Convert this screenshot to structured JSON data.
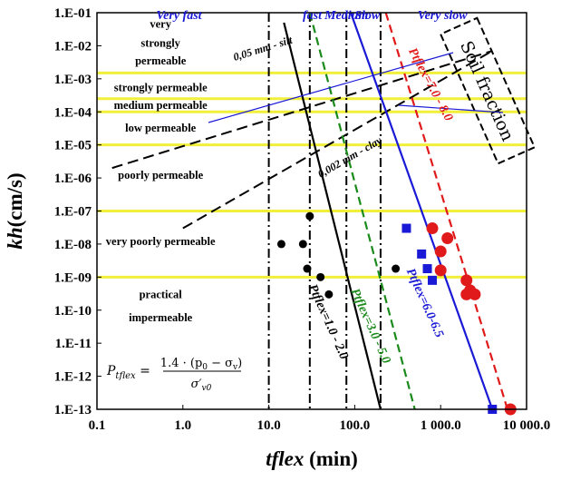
{
  "chart_data": {
    "type": "scatter",
    "xlabel": {
      "var": "tflex",
      "unit": "(min)"
    },
    "ylabel": {
      "var": "kh",
      "unit": "(cm/s)"
    },
    "xscale": "log",
    "yscale": "log",
    "xlim": [
      0.1,
      10000
    ],
    "ylim": [
      1e-13,
      0.1
    ],
    "grid": false,
    "x_ticks": [
      {
        "value": 0.1,
        "label": "0.1"
      },
      {
        "value": 1,
        "label": "1.0"
      },
      {
        "value": 10,
        "label": "10.0"
      },
      {
        "value": 100,
        "label": "100.0"
      },
      {
        "value": 1000,
        "label": "1 000.0"
      },
      {
        "value": 10000,
        "label": "10 000.0"
      }
    ],
    "y_ticks": [
      {
        "value": 0.1,
        "label": "1.E-01"
      },
      {
        "value": 0.01,
        "label": "1.E-02"
      },
      {
        "value": 0.001,
        "label": "1.E-03"
      },
      {
        "value": 0.0001,
        "label": "1.E-04"
      },
      {
        "value": 1e-05,
        "label": "1.E-05"
      },
      {
        "value": 1e-06,
        "label": "1.E-06"
      },
      {
        "value": 1e-07,
        "label": "1.E-07"
      },
      {
        "value": 1e-08,
        "label": "1.E-08"
      },
      {
        "value": 1e-09,
        "label": "1.E-09"
      },
      {
        "value": 1e-10,
        "label": "1.E-10"
      },
      {
        "value": 1e-11,
        "label": "1.E-11"
      },
      {
        "value": 1e-12,
        "label": "1.E-12"
      },
      {
        "value": 1e-13,
        "label": "1.E-13"
      }
    ],
    "permeability_boundaries": [
      0.0015,
      0.00025,
      0.0001,
      1e-05,
      1e-07,
      1e-09
    ],
    "permeability_zones": [
      {
        "lines": [
          "very",
          "strongly",
          "permeable"
        ],
        "x": 0.55,
        "y": [
          0.045,
          0.012,
          0.0035
        ]
      },
      {
        "lines": [
          "strongly permeable"
        ],
        "x": 0.55,
        "y": [
          0.00055
        ]
      },
      {
        "lines": [
          "medium permeable"
        ],
        "x": 0.55,
        "y": [
          0.00016
        ]
      },
      {
        "lines": [
          "low permeable"
        ],
        "x": 0.55,
        "y": [
          3.3e-05
        ]
      },
      {
        "lines": [
          "poorly permeable"
        ],
        "x": 0.55,
        "y": [
          1.2e-06
        ]
      },
      {
        "lines": [
          "very poorly permeable"
        ],
        "x": 0.55,
        "y": [
          1.2e-08
        ]
      },
      {
        "lines": [
          "practical",
          "impermeable"
        ],
        "x": 0.55,
        "y": [
          3e-10,
          6e-11
        ]
      }
    ],
    "time_boundaries": [
      10,
      30,
      80,
      200
    ],
    "speed_labels": [
      {
        "text": "Very fast",
        "x": 0.9
      },
      {
        "text": "fast",
        "x": 32
      },
      {
        "text": "Medium",
        "x": 80
      },
      {
        "text": "Slow",
        "x": 140
      },
      {
        "text": "Very slow",
        "x": 1050
      }
    ],
    "series": [
      {
        "name": "Ptflex=1.0 - 2.0",
        "color": "#000000",
        "dash": "solid",
        "line": {
          "x": [
            15,
            200
          ],
          "y": [
            0.05,
            1e-13
          ]
        },
        "label_pos": {
          "x": 45,
          "y": 4e-11,
          "angle": 66
        },
        "points": {
          "marker": "circle-small",
          "x": [
            14,
            25,
            30,
            28,
            40,
            50
          ],
          "y": [
            1e-08,
            1e-08,
            7e-08,
            1.8e-09,
            1e-09,
            3e-10
          ]
        }
      },
      {
        "name": "Ptflex=3.0 - 5.0",
        "color": "#1a8a1a",
        "dash": "dash",
        "line": {
          "x": [
            30,
            500
          ],
          "y": [
            0.1,
            1e-13
          ]
        },
        "label_pos": {
          "x": 140,
          "y": 3e-11,
          "angle": 66
        },
        "points": null
      },
      {
        "name": "Ptflex=6.0-6.5",
        "color": "#1a1ad6",
        "dash": "solid",
        "line": {
          "x": [
            90,
            4000
          ],
          "y": [
            0.1,
            1e-13
          ]
        },
        "label_pos": {
          "x": 600,
          "y": 1.5e-10,
          "angle": 66
        },
        "points": {
          "marker": "square",
          "x": [
            400,
            600,
            700,
            800,
            4000
          ],
          "y": [
            3e-08,
            5e-09,
            1.8e-09,
            8e-10,
            1e-13
          ]
        }
      },
      {
        "name": "Ptflex=7.0 - 8.0",
        "color": "#e01a1a",
        "dash": "dash",
        "line": {
          "x": [
            230,
            6000
          ],
          "y": [
            0.1,
            1e-13
          ]
        },
        "label_pos": {
          "x": 700,
          "y": 0.0006,
          "angle": 62
        },
        "points": {
          "marker": "circle-large",
          "x": [
            800,
            1200,
            1000,
            1000,
            2000,
            2200,
            2500,
            2000,
            6500
          ],
          "y": [
            3e-08,
            1.5e-08,
            1.6e-09,
            6e-09,
            8e-10,
            4e-10,
            3e-10,
            3e-10,
            1e-13
          ]
        }
      }
    ],
    "extra_points": [
      {
        "x": 300,
        "y": 1.8e-09
      }
    ],
    "soil_fraction": {
      "label": "Soil fraction",
      "lines": [
        {
          "label": "0,05 mm - silt",
          "x": [
            0.15,
            4000
          ],
          "y": [
            2e-06,
            0.007
          ],
          "label_pos": {
            "x": 4,
            "y": 0.0035
          }
        },
        {
          "label": "0,002 mm - clay",
          "x": [
            1,
            4000
          ],
          "y": [
            3e-08,
            0.007
          ],
          "label_pos": {
            "x": 40,
            "y": 1e-06
          }
        }
      ]
    },
    "formula": {
      "lhs": "P",
      "lhs_sub": "tflex",
      "numerator": "1.4 · (p",
      "num_sub1": "0",
      "numerator_mid": " − σ",
      "num_sub2": "v",
      "numerator_end": ")",
      "denominator": "σ′",
      "den_sub": "v0"
    }
  }
}
